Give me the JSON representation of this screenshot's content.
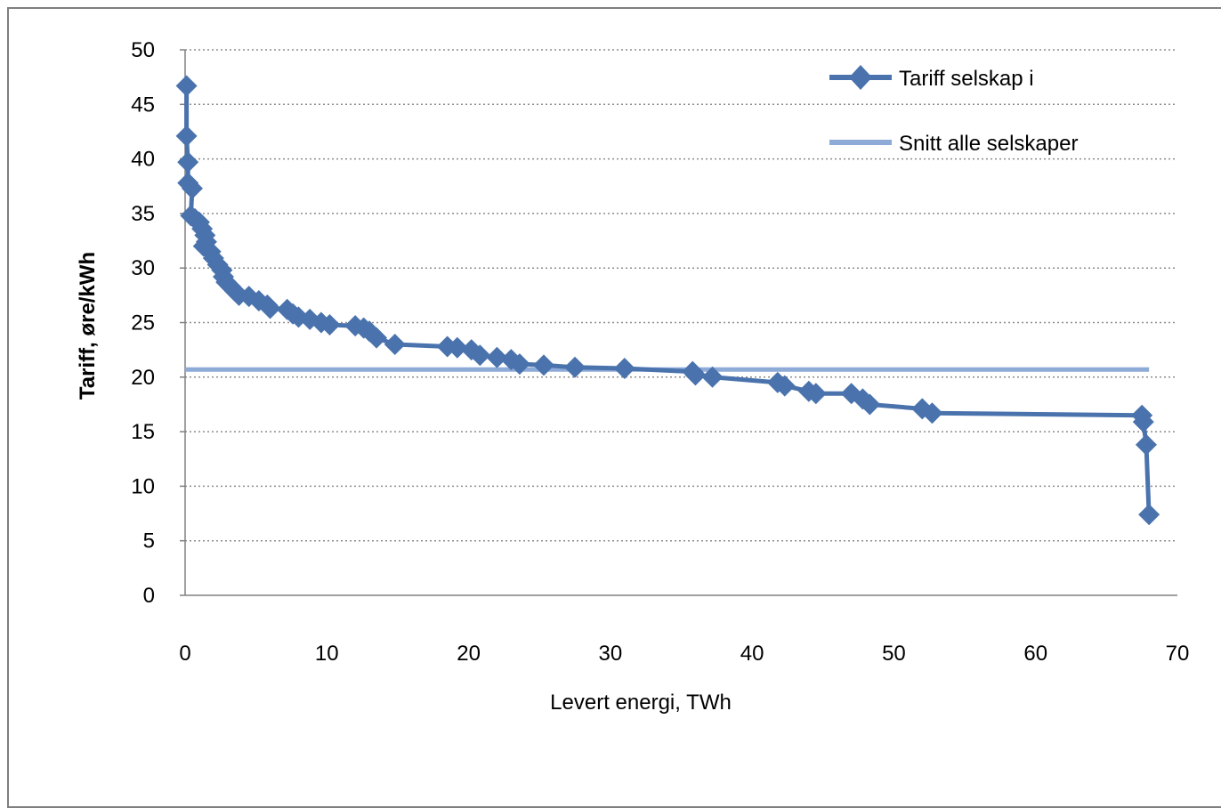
{
  "chart_data": {
    "type": "line",
    "title": "",
    "xlabel": "Levert energi, TWh",
    "ylabel": "Tariff, øre/kWh",
    "xlim": [
      0,
      70
    ],
    "ylim": [
      0,
      50
    ],
    "x_ticks": [
      "0",
      "10",
      "20",
      "30",
      "40",
      "50",
      "60",
      "70"
    ],
    "y_ticks": [
      "0",
      "5",
      "10",
      "15",
      "20",
      "25",
      "30",
      "35",
      "40",
      "45",
      "50"
    ],
    "grid": "horizontal dotted",
    "legend_position": "top-right",
    "series": [
      {
        "name": "Tariff selskap i",
        "color": "#4a73ad",
        "marker": "diamond",
        "points": [
          [
            0.1,
            46.7
          ],
          [
            0.1,
            42.1
          ],
          [
            0.2,
            39.7
          ],
          [
            0.2,
            37.8
          ],
          [
            0.5,
            37.3
          ],
          [
            0.4,
            34.8
          ],
          [
            0.7,
            34.5
          ],
          [
            1.0,
            34.2
          ],
          [
            1.2,
            33.6
          ],
          [
            1.4,
            33.0
          ],
          [
            1.5,
            32.4
          ],
          [
            1.3,
            32.0
          ],
          [
            1.8,
            31.5
          ],
          [
            2.0,
            30.9
          ],
          [
            2.3,
            30.3
          ],
          [
            2.6,
            29.8
          ],
          [
            2.7,
            29.2
          ],
          [
            2.9,
            28.7
          ],
          [
            3.2,
            28.3
          ],
          [
            3.5,
            27.9
          ],
          [
            3.8,
            27.5
          ],
          [
            4.5,
            27.4
          ],
          [
            5.2,
            27.0
          ],
          [
            5.8,
            26.6
          ],
          [
            6.0,
            26.3
          ],
          [
            7.2,
            26.2
          ],
          [
            7.6,
            25.8
          ],
          [
            8.0,
            25.5
          ],
          [
            8.8,
            25.3
          ],
          [
            9.6,
            25.0
          ],
          [
            10.2,
            24.8
          ],
          [
            12.0,
            24.7
          ],
          [
            12.6,
            24.5
          ],
          [
            13.0,
            24.2
          ],
          [
            13.5,
            23.6
          ],
          [
            14.8,
            23.0
          ],
          [
            18.5,
            22.8
          ],
          [
            19.2,
            22.7
          ],
          [
            20.2,
            22.5
          ],
          [
            20.8,
            22.0
          ],
          [
            22.0,
            21.8
          ],
          [
            23.0,
            21.6
          ],
          [
            23.6,
            21.2
          ],
          [
            25.3,
            21.1
          ],
          [
            27.5,
            20.9
          ],
          [
            31.0,
            20.8
          ],
          [
            35.8,
            20.5
          ],
          [
            36.0,
            20.2
          ],
          [
            37.2,
            20.0
          ],
          [
            41.8,
            19.5
          ],
          [
            42.3,
            19.2
          ],
          [
            44.0,
            18.7
          ],
          [
            44.5,
            18.5
          ],
          [
            47.0,
            18.5
          ],
          [
            47.8,
            18.0
          ],
          [
            48.3,
            17.5
          ],
          [
            52.0,
            17.1
          ],
          [
            52.7,
            16.7
          ],
          [
            67.5,
            16.5
          ],
          [
            67.6,
            15.9
          ],
          [
            67.8,
            13.8
          ],
          [
            68.0,
            7.4
          ]
        ]
      },
      {
        "name": "Snitt alle selskaper",
        "color": "#8eaad7",
        "points": [
          [
            0.0,
            20.7
          ],
          [
            68.0,
            20.7
          ]
        ]
      }
    ]
  }
}
